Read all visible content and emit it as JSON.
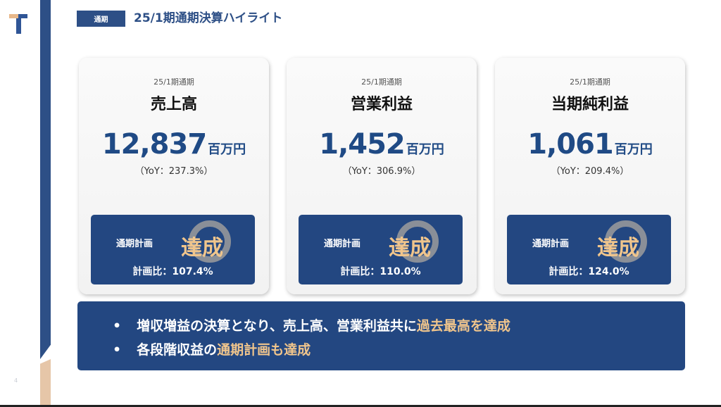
{
  "header": {
    "tag": "通期",
    "title": "25/1期通期決算ハイライト"
  },
  "page_number": "4",
  "cards": [
    {
      "period": "25/1期通期",
      "metric": "売上高",
      "value": "12,837",
      "unit": "百万円",
      "yoy": "（YoY：237.3%）",
      "plan_label": "通期計画",
      "achieved": "達成",
      "plan_ratio": "計画比：107.4%"
    },
    {
      "period": "25/1期通期",
      "metric": "営業利益",
      "value": "1,452",
      "unit": "百万円",
      "yoy": "（YoY：306.9%）",
      "plan_label": "通期計画",
      "achieved": "達成",
      "plan_ratio": "計画比：110.0%"
    },
    {
      "period": "25/1期通期",
      "metric": "当期純利益",
      "value": "1,061",
      "unit": "百万円",
      "yoy": "（YoY：209.4%）",
      "plan_label": "通期計画",
      "achieved": "達成",
      "plan_ratio": "計画比：124.0%"
    }
  ],
  "summary": [
    {
      "text": "増収増益の決算となり、売上高、営業利益共に",
      "highlight": "過去最高を達成"
    },
    {
      "text": "各段階収益の",
      "highlight": "通期計画も達成"
    }
  ],
  "colors": {
    "navy": "#234781",
    "gold": "#f0c58c"
  }
}
